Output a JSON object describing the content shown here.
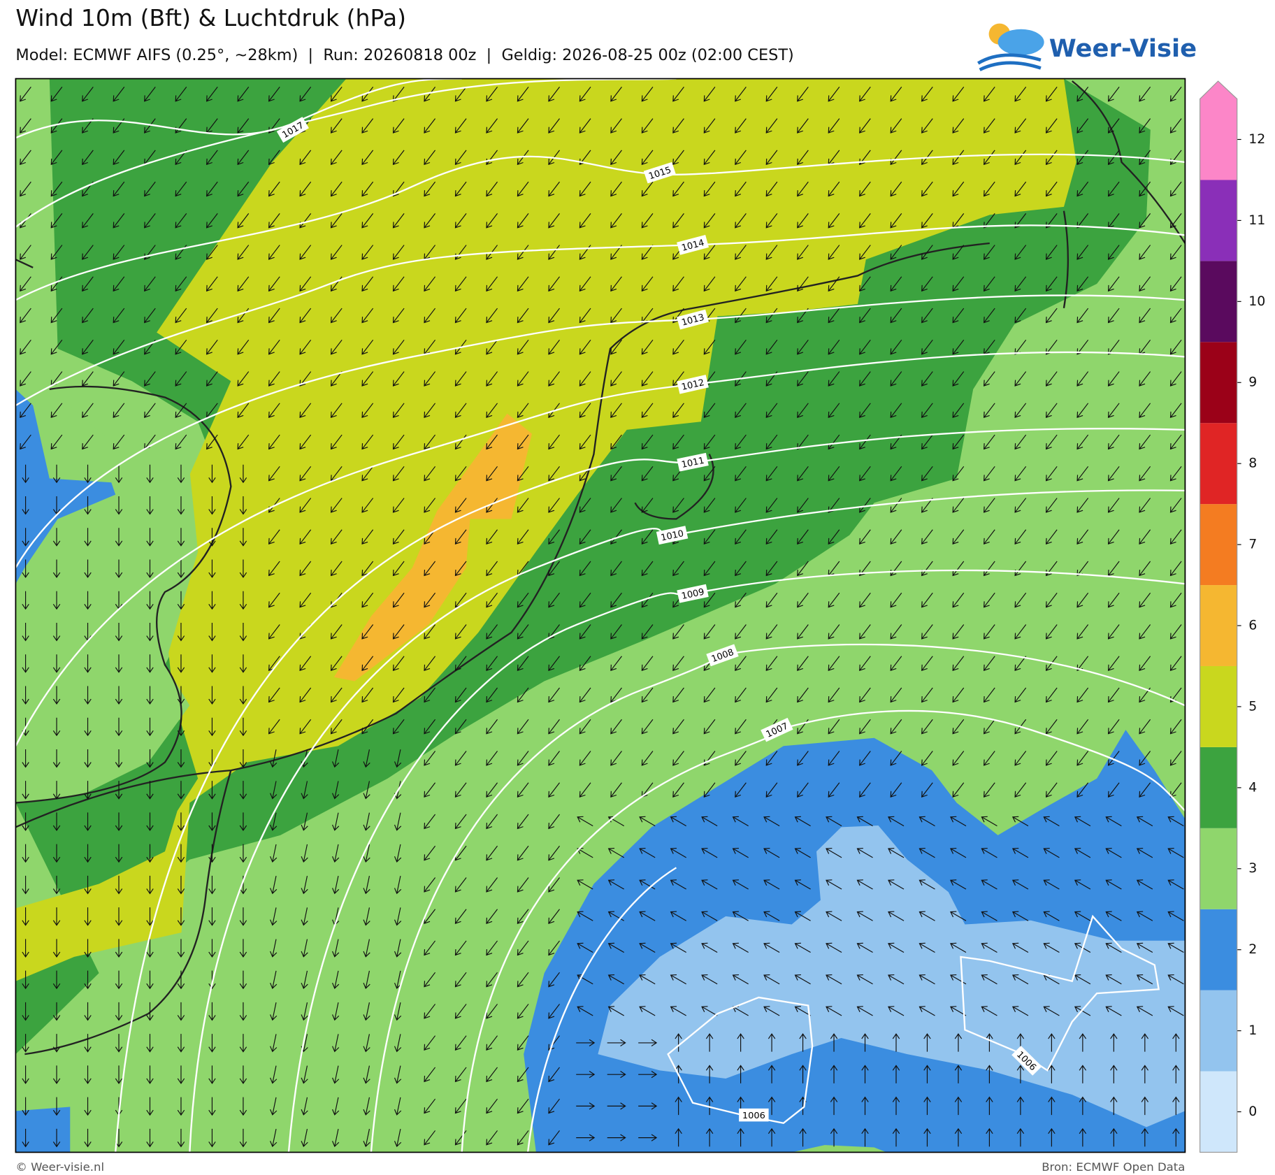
{
  "header": {
    "title": "Wind 10m (Bft) & Luchtdruk (hPa)",
    "subtitle": "Model: ECMWF AIFS (0.25°, ~28km)  |  Run: 20260818 00z  |  Geldig: 2026-08-25 00z (02:00 CEST)",
    "logo": "Weer-Visie"
  },
  "colorbar": {
    "levels": [
      0,
      1,
      2,
      3,
      4,
      5,
      6,
      7,
      8,
      9,
      10,
      11,
      12
    ],
    "colors": [
      "#cfe7fb",
      "#93c4ee",
      "#3b8de0",
      "#8fd66c",
      "#3ca33f",
      "#c9d71e",
      "#f5b731",
      "#f47c21",
      "#e02525",
      "#9b0118",
      "#5a0a5e",
      "#8a2fb8",
      "#fc86c8"
    ]
  },
  "isobars": {
    "labels": [
      "1017",
      "1015",
      "1014",
      "1013",
      "1012",
      "1011",
      "1010",
      "1009",
      "1008",
      "1007",
      "1006",
      "1006"
    ]
  },
  "footer": {
    "left": "© Weer-visie.nl",
    "right": "Bron: ECMWF Open Data"
  }
}
